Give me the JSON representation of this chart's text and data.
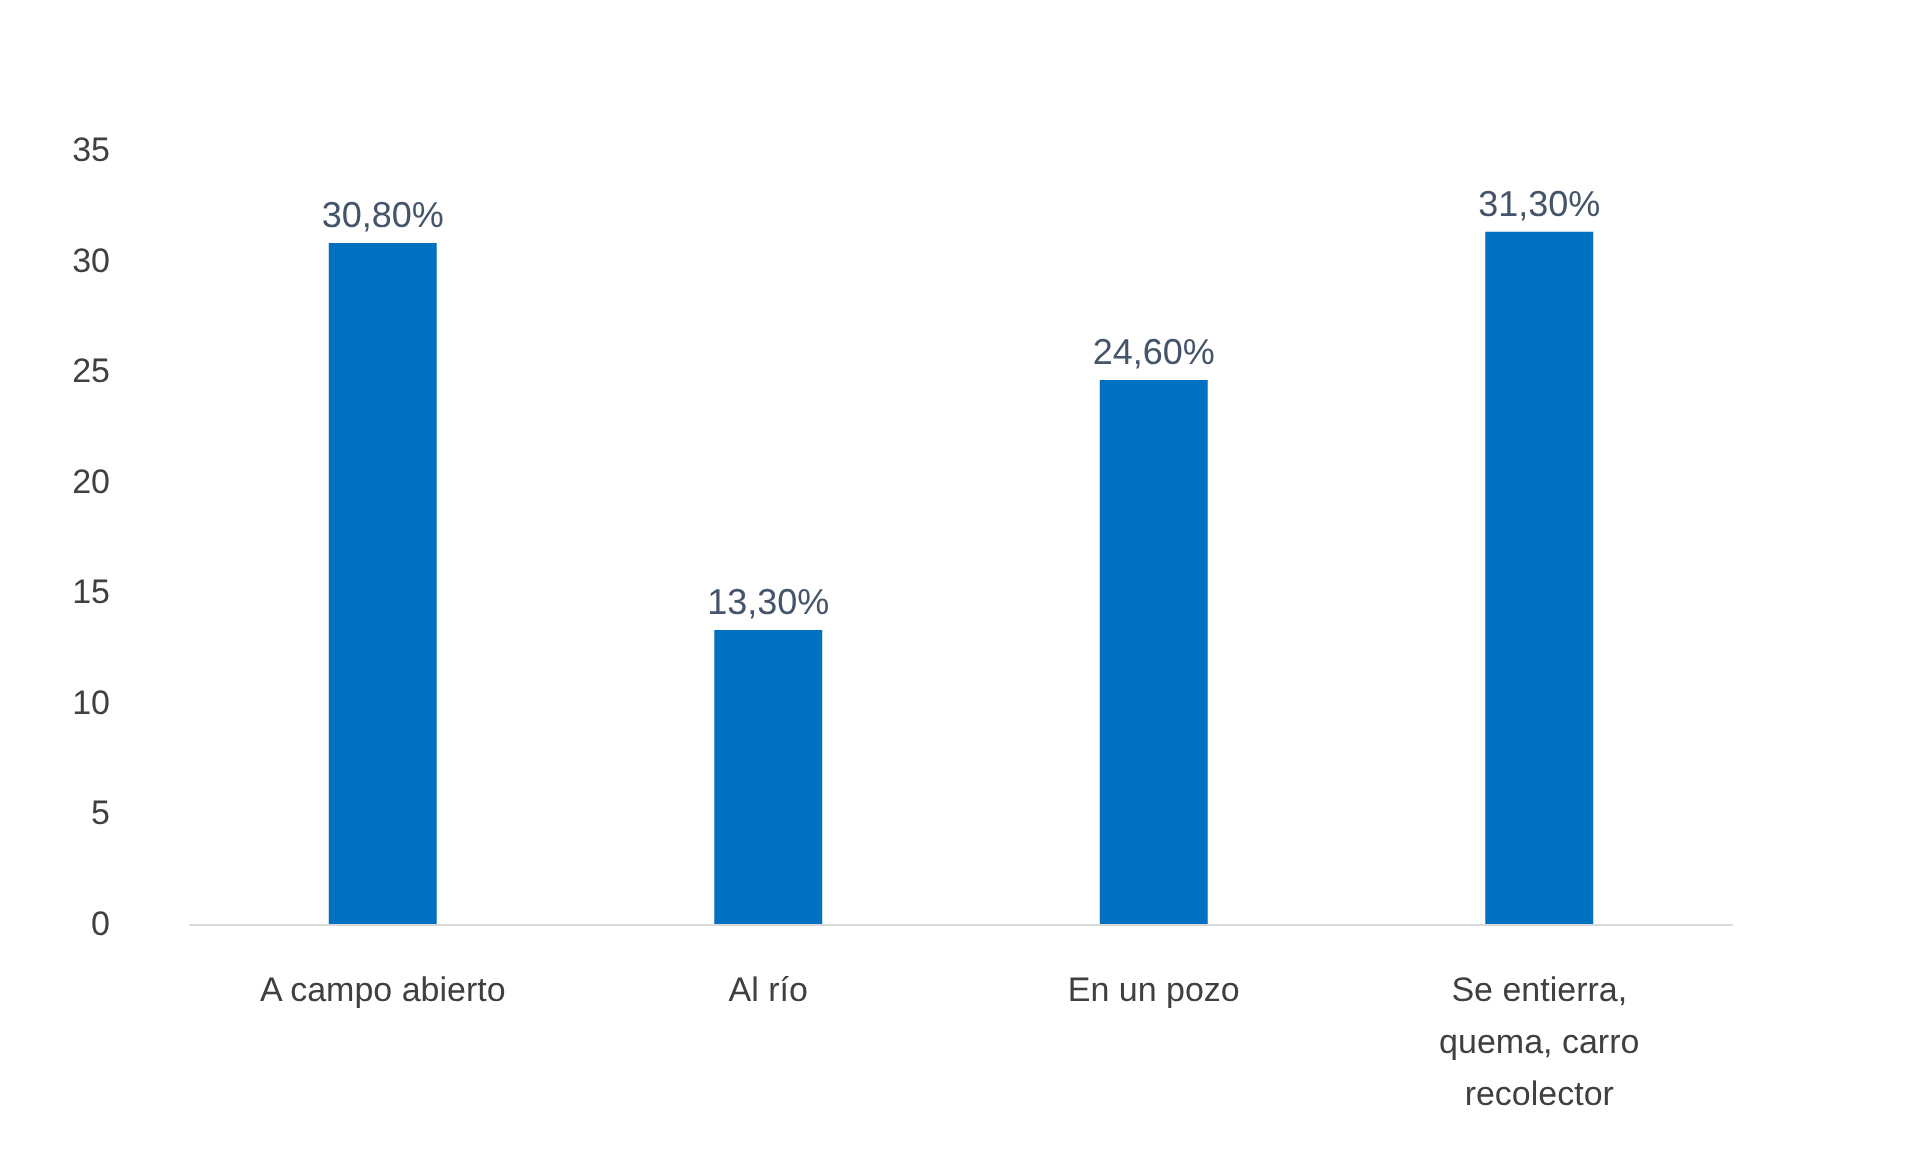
{
  "chart_data": {
    "type": "bar",
    "categories": [
      "A campo abierto",
      "Al río",
      "En un pozo",
      "Se entierra, quema, carro recolector"
    ],
    "values": [
      30.8,
      13.3,
      24.6,
      31.3
    ],
    "value_labels": [
      "30,80%",
      "13,30%",
      "24,60%",
      "31,30%"
    ],
    "color": "#0070c0",
    "ylim": [
      0,
      35
    ],
    "yticks": [
      0,
      5,
      10,
      15,
      20,
      25,
      30,
      35
    ],
    "grid": false
  }
}
